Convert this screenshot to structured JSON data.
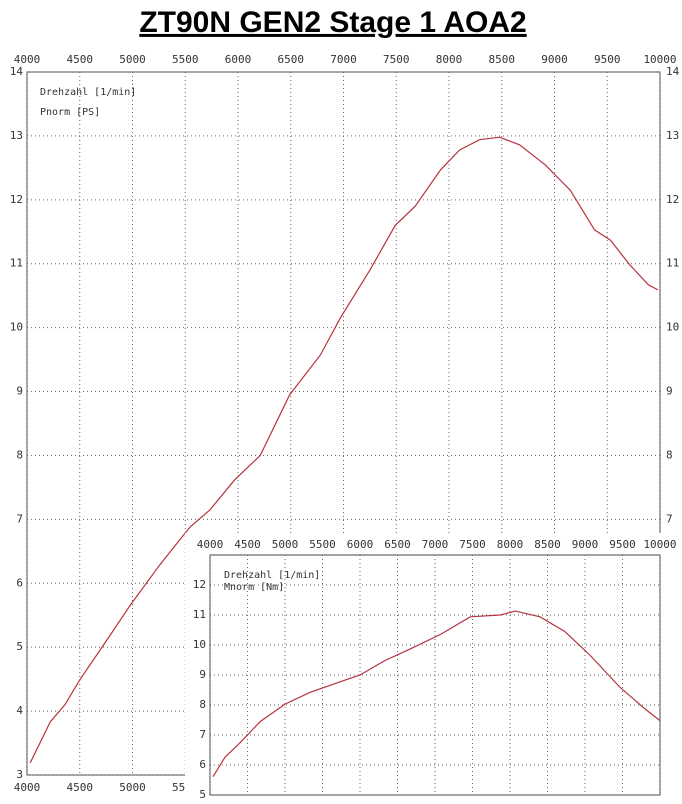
{
  "title": "ZT90N GEN2  Stage 1  AOA2",
  "chart_data": [
    {
      "type": "line",
      "x_label": "Drehzahl [1/min]",
      "y_label": "Pnorm [PS]",
      "color": "#b5333f",
      "grid": true,
      "x": [
        4030,
        4220,
        4360,
        4500,
        4790,
        4980,
        5260,
        5545,
        5735,
        5970,
        6210,
        6490,
        6780,
        6970,
        7250,
        7490,
        7680,
        7920,
        8100,
        8290,
        8480,
        8670,
        8910,
        9150,
        9380,
        9530,
        9715,
        9890,
        9980
      ],
      "values": [
        3.19,
        3.83,
        4.1,
        4.49,
        5.19,
        5.66,
        6.29,
        6.88,
        7.15,
        7.62,
        8.0,
        8.95,
        9.57,
        10.15,
        10.9,
        11.6,
        11.9,
        12.47,
        12.78,
        12.94,
        12.98,
        12.86,
        12.55,
        12.15,
        11.53,
        11.37,
        10.98,
        10.67,
        10.59
      ],
      "xlim": [
        4000,
        10000
      ],
      "xticks": [
        4000,
        4500,
        5000,
        5500,
        6000,
        6500,
        7000,
        7500,
        8000,
        8500,
        9000,
        9500,
        10000
      ],
      "ylim": [
        3,
        14
      ],
      "yticks": [
        3,
        4,
        5,
        6,
        7,
        8,
        9,
        10,
        11,
        12,
        13,
        14
      ]
    },
    {
      "type": "line",
      "x_label": "Drehzahl [1/min]",
      "y_label": "Mnorm [Nm]",
      "color": "#b5333f",
      "grid": true,
      "x": [
        4040,
        4200,
        4400,
        4670,
        5000,
        5330,
        5730,
        6000,
        6330,
        6670,
        7070,
        7470,
        7870,
        8070,
        8400,
        8730,
        9070,
        9470,
        9800,
        10000
      ],
      "values": [
        5.61,
        6.26,
        6.74,
        7.45,
        8.03,
        8.42,
        8.77,
        9.0,
        9.48,
        9.87,
        10.35,
        10.94,
        11.0,
        11.13,
        10.94,
        10.45,
        9.65,
        8.58,
        7.87,
        7.48
      ],
      "xlim": [
        4000,
        10000
      ],
      "xticks": [
        4000,
        4500,
        5000,
        5500,
        6000,
        6500,
        7000,
        7500,
        8000,
        8500,
        9000,
        9500,
        10000
      ],
      "ylim": [
        5,
        13
      ],
      "yticks": [
        5,
        6,
        7,
        8,
        9,
        10,
        11,
        12
      ]
    }
  ]
}
